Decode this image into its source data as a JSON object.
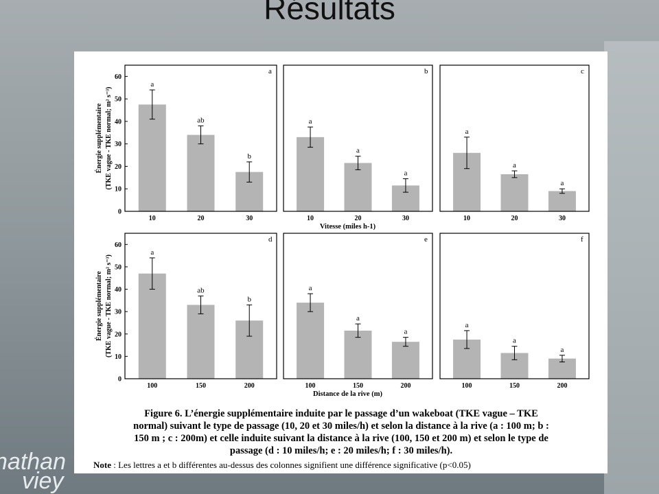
{
  "slide": {
    "title": "Résultats",
    "watermark": [
      "nathan",
      "viey"
    ]
  },
  "chart_data": [
    {
      "type": "bar",
      "panel_label": "a",
      "categories": [
        "10",
        "20",
        "30"
      ],
      "values": [
        47.5,
        34,
        17.5
      ],
      "errors": [
        6.5,
        4,
        4.5
      ],
      "annotations": [
        "a",
        "ab",
        "b"
      ],
      "color": "#b4b4b4",
      "ylim": [
        0,
        65
      ],
      "yticks": [
        0,
        10,
        20,
        30,
        40,
        50,
        60
      ],
      "ylabel": [
        "Énergie supplémentaire",
        "(TKE vague - TKE normal; m² s⁻³)"
      ]
    },
    {
      "type": "bar",
      "panel_label": "b",
      "categories": [
        "10",
        "20",
        "30"
      ],
      "values": [
        33,
        21.5,
        11.5
      ],
      "errors": [
        4.5,
        3,
        3
      ],
      "annotations": [
        "a",
        "a",
        "a"
      ],
      "color": "#b4b4b4",
      "ylim": [
        0,
        65
      ],
      "xlabel": "Vitesse (miles h-1)"
    },
    {
      "type": "bar",
      "panel_label": "c",
      "categories": [
        "10",
        "20",
        "30"
      ],
      "values": [
        26,
        16.5,
        9
      ],
      "errors": [
        7,
        1.5,
        1
      ],
      "annotations": [
        "a",
        "a",
        "a"
      ],
      "color": "#b4b4b4",
      "ylim": [
        0,
        65
      ]
    },
    {
      "type": "bar",
      "panel_label": "d",
      "categories": [
        "100",
        "150",
        "200"
      ],
      "values": [
        47,
        33,
        26
      ],
      "errors": [
        7,
        4,
        7
      ],
      "annotations": [
        "a",
        "ab",
        "b"
      ],
      "color": "#b4b4b4",
      "ylim": [
        0,
        65
      ],
      "yticks": [
        0,
        10,
        20,
        30,
        40,
        50,
        60
      ],
      "ylabel": [
        "Énergie supplémentaire",
        "(TKE vague - TKE normal; m² s⁻³)"
      ]
    },
    {
      "type": "bar",
      "panel_label": "e",
      "categories": [
        "100",
        "150",
        "200"
      ],
      "values": [
        34,
        21.5,
        16.5
      ],
      "errors": [
        4,
        3,
        2
      ],
      "annotations": [
        "a",
        "a",
        "a"
      ],
      "color": "#b4b4b4",
      "ylim": [
        0,
        65
      ],
      "xlabel": "Distance de la rive (m)"
    },
    {
      "type": "bar",
      "panel_label": "f",
      "categories": [
        "100",
        "150",
        "200"
      ],
      "values": [
        17.5,
        11.5,
        9
      ],
      "errors": [
        4,
        3,
        1.5
      ],
      "annotations": [
        "a",
        "a",
        "a"
      ],
      "color": "#b4b4b4",
      "ylim": [
        0,
        65
      ]
    }
  ],
  "caption": {
    "lines": [
      "Figure 6. L’énergie supplémentaire induite par le passage d’un wakeboat (TKE vague – TKE",
      "normal) suivant le type de passage (10, 20 et 30 miles/h) et selon la distance à la rive (a : 100 m; b :",
      "150 m ; c : 200m) et celle induite suivant la distance à la rive (100, 150 et 200 m) et selon le type de",
      "passage (d : 10 miles/h;  e : 20 miles/h; f : 30 miles/h)."
    ],
    "note_label": "Note",
    "note_text": " : Les lettres a et b différentes au-dessus des colonnes signifient une différence significative (p<0.05)"
  }
}
